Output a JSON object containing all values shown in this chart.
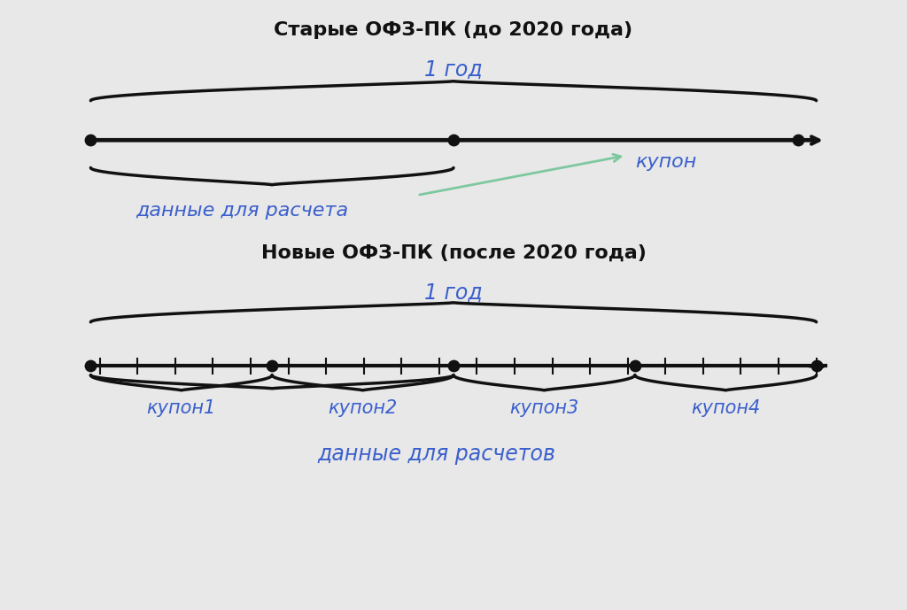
{
  "bg_color": "#e8e8e8",
  "title1": "Старые ОФЗ-ПК (до 2020 года)",
  "title2": "Новые ОФЗ-ПК (после 2020 года)",
  "label_1_year_top": "1 год",
  "label_1_year_bottom": "1 год",
  "label_data_old": "данные для расчета",
  "label_coupon": "купон",
  "label_data_new": "данные для расчетов",
  "label_coupon1": "купон1",
  "label_coupon2": "купон2",
  "label_coupon3": "купон3",
  "label_coupon4": "купон4",
  "black_color": "#111111",
  "blue_color": "#3a5fcd",
  "green_color": "#7ec8a0",
  "title_fontsize": 16,
  "italic_fontsize": 17,
  "data_label_fontsize": 16,
  "coupon_label_fontsize": 15
}
